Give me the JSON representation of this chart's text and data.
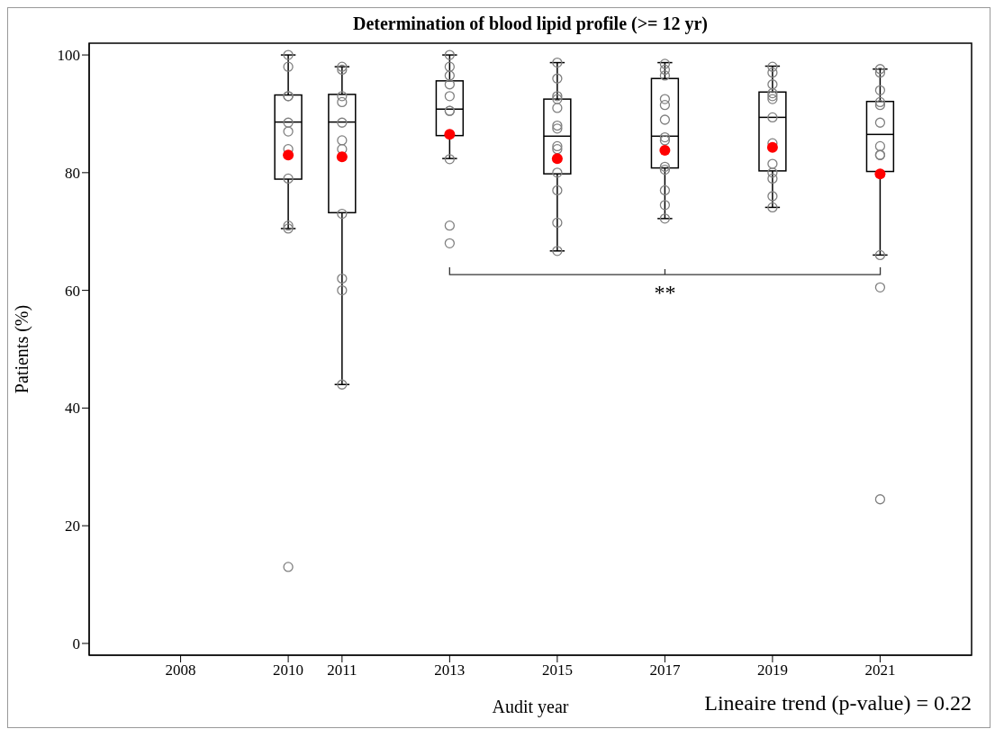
{
  "chart_data": {
    "type": "box",
    "title": "Determination of blood lipid profile (>= 12 yr)",
    "xlabel": "Audit year",
    "ylabel": "Patients (%)",
    "x": [
      2010,
      2011,
      2013,
      2015,
      2017,
      2019,
      2021
    ],
    "boxes": [
      {
        "low": 70.5,
        "q1": 78.9,
        "median": 88.6,
        "q3": 93.2,
        "high": 100,
        "mean": 83.0
      },
      {
        "low": 44,
        "q1": 73.2,
        "median": 88.6,
        "q3": 93.3,
        "high": 98,
        "mean": 82.7
      },
      {
        "low": 82.4,
        "q1": 86.3,
        "median": 90.8,
        "q3": 95.6,
        "high": 100,
        "mean": 86.5
      },
      {
        "low": 66.7,
        "q1": 79.8,
        "median": 86.2,
        "q3": 92.5,
        "high": 98.7,
        "mean": 82.4
      },
      {
        "low": 72.2,
        "q1": 80.8,
        "median": 86.2,
        "q3": 96,
        "high": 98.7,
        "mean": 83.8
      },
      {
        "low": 74.1,
        "q1": 80.3,
        "median": 89.4,
        "q3": 93.7,
        "high": 98.1,
        "mean": 84.3
      },
      {
        "low": 66,
        "q1": 80.2,
        "median": 86.5,
        "q3": 92.1,
        "high": 97.6,
        "mean": 79.8
      }
    ],
    "series": [
      {
        "type": "scatter",
        "color": "#808080",
        "marker": "circle",
        "x": [
          2010,
          2010,
          2010,
          2010,
          2010,
          2010,
          2010,
          2010,
          2010,
          2010,
          2010,
          2011,
          2011,
          2011,
          2011,
          2011,
          2011,
          2011,
          2011,
          2011,
          2011,
          2011,
          2013,
          2013,
          2013,
          2013,
          2013,
          2013,
          2013,
          2013,
          2013,
          2013,
          2015,
          2015,
          2015,
          2015,
          2015,
          2015,
          2015,
          2015,
          2015,
          2015,
          2015,
          2015,
          2015,
          2017,
          2017,
          2017,
          2017,
          2017,
          2017,
          2017,
          2017,
          2017,
          2017,
          2017,
          2017,
          2017,
          2019,
          2019,
          2019,
          2019,
          2019,
          2019,
          2019,
          2019,
          2019,
          2019,
          2019,
          2019,
          2019,
          2021,
          2021,
          2021,
          2021,
          2021,
          2021,
          2021,
          2021,
          2021,
          2021,
          2021,
          2021
        ],
        "values": [
          100,
          98,
          93,
          93,
          88.5,
          87,
          84,
          79,
          71,
          70.5,
          13,
          98,
          97.5,
          93,
          92,
          88.5,
          85.5,
          84,
          73,
          62,
          60,
          44,
          100,
          98,
          96.5,
          95,
          93,
          90.5,
          90.5,
          82.3,
          71,
          68,
          98.7,
          96,
          93,
          92.5,
          91,
          88,
          87.5,
          84.5,
          84,
          80,
          77,
          71.5,
          66.7,
          98.5,
          97.5,
          96.5,
          92.5,
          91.5,
          89,
          86,
          85.5,
          81,
          80.5,
          77,
          74.5,
          72.2,
          98,
          97,
          95,
          93.5,
          93,
          92.5,
          89.4,
          85,
          81.5,
          80,
          79,
          76,
          74.1,
          97.6,
          97,
          94,
          92,
          91.5,
          88.5,
          84.5,
          83,
          83,
          66,
          60.5,
          24.5
        ]
      }
    ],
    "xlim": [
      2006.3,
      2022.7
    ],
    "xticks": [
      2008,
      2010,
      2011,
      2013,
      2015,
      2017,
      2019,
      2021
    ],
    "ylim": [
      -2,
      102
    ],
    "yticks": [
      0,
      20,
      40,
      60,
      80,
      100
    ],
    "annotations": [
      "**",
      "Lineaire trend (p-value) = 0.22"
    ]
  }
}
